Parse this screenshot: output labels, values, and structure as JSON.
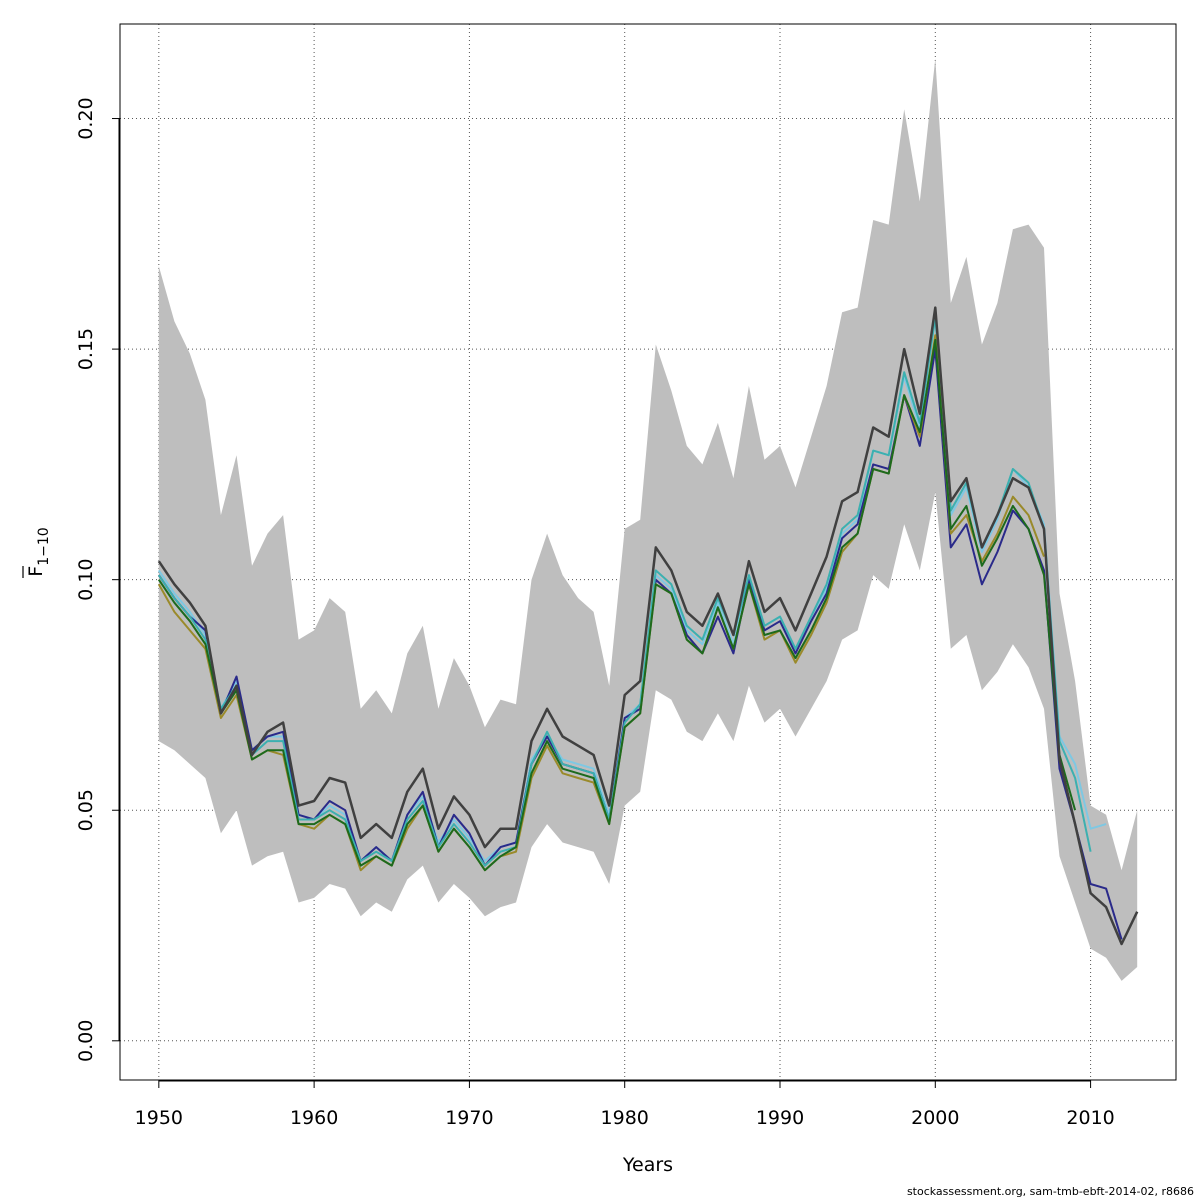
{
  "chart_data": {
    "type": "line",
    "title": "",
    "xlabel": "Years",
    "ylabel": {
      "main": "F",
      "sub": "1−10"
    },
    "xlim": [
      1947.5,
      2015.5
    ],
    "ylim": [
      -0.0085,
      0.2205
    ],
    "x_ticks": [
      1950,
      1960,
      1970,
      1980,
      1990,
      2000,
      2010
    ],
    "y_ticks": [
      0.0,
      0.05,
      0.1,
      0.15,
      0.2
    ],
    "y_tick_labels": [
      "0.00",
      "0.05",
      "0.10",
      "0.15",
      "0.20"
    ],
    "grid": true,
    "legend": "none",
    "x": [
      1950,
      1951,
      1952,
      1953,
      1954,
      1955,
      1956,
      1957,
      1958,
      1959,
      1960,
      1961,
      1962,
      1963,
      1964,
      1965,
      1966,
      1967,
      1968,
      1969,
      1970,
      1971,
      1972,
      1973,
      1974,
      1975,
      1976,
      1977,
      1978,
      1979,
      1980,
      1981,
      1982,
      1983,
      1984,
      1985,
      1986,
      1987,
      1988,
      1989,
      1990,
      1991,
      1992,
      1993,
      1994,
      1995,
      1996,
      1997,
      1998,
      1999,
      2000,
      2001,
      2002,
      2003,
      2004,
      2005,
      2006,
      2007,
      2008,
      2009,
      2010,
      2011,
      2012,
      2013
    ],
    "band_color": "#bebebe",
    "band": {
      "upper": [
        0.168,
        0.156,
        0.149,
        0.139,
        0.114,
        0.127,
        0.103,
        0.11,
        0.114,
        0.087,
        0.089,
        0.096,
        0.093,
        0.072,
        0.076,
        0.071,
        0.084,
        0.09,
        0.072,
        0.083,
        0.077,
        0.068,
        0.074,
        0.073,
        0.1,
        0.11,
        0.101,
        0.096,
        0.093,
        0.077,
        0.111,
        0.113,
        0.151,
        0.141,
        0.129,
        0.125,
        0.134,
        0.122,
        0.142,
        0.126,
        0.129,
        0.12,
        0.131,
        0.142,
        0.158,
        0.159,
        0.178,
        0.177,
        0.202,
        0.182,
        0.213,
        0.16,
        0.17,
        0.151,
        0.16,
        0.176,
        0.177,
        0.172,
        0.097,
        0.078,
        0.051,
        0.049,
        0.037,
        0.05
      ],
      "lower": [
        0.065,
        0.063,
        0.06,
        0.057,
        0.045,
        0.05,
        0.038,
        0.04,
        0.041,
        0.03,
        0.031,
        0.034,
        0.033,
        0.027,
        0.03,
        0.028,
        0.035,
        0.038,
        0.03,
        0.034,
        0.031,
        0.027,
        0.029,
        0.03,
        0.042,
        0.047,
        0.043,
        0.042,
        0.041,
        0.034,
        0.051,
        0.054,
        0.076,
        0.074,
        0.067,
        0.065,
        0.071,
        0.065,
        0.077,
        0.069,
        0.072,
        0.066,
        0.072,
        0.078,
        0.087,
        0.089,
        0.101,
        0.098,
        0.112,
        0.102,
        0.119,
        0.085,
        0.088,
        0.076,
        0.08,
        0.086,
        0.081,
        0.072,
        0.04,
        0.03,
        0.02,
        0.018,
        0.013,
        0.016
      ]
    },
    "series": [
      {
        "color": "#7ec8e3",
        "width": 2,
        "values": [
          0.102,
          0.097,
          0.093,
          0.088,
          0.072,
          0.078,
          0.063,
          0.066,
          0.066,
          0.049,
          0.048,
          0.051,
          0.049,
          0.039,
          0.042,
          0.039,
          0.049,
          0.053,
          0.043,
          0.048,
          0.044,
          0.039,
          0.042,
          0.043,
          0.061,
          0.066,
          0.061,
          0.06,
          0.059,
          0.049,
          0.07,
          0.073,
          0.101,
          0.098,
          0.089,
          0.086,
          0.095,
          0.086,
          0.101,
          0.09,
          0.092,
          0.085,
          0.092,
          0.098,
          0.11,
          0.113,
          0.128,
          0.127,
          0.144,
          0.133,
          0.157,
          0.114,
          0.12,
          0.106,
          0.113,
          0.124,
          0.12,
          0.112,
          0.066,
          0.06,
          0.046,
          0.047,
          null,
          null
        ]
      },
      {
        "color": "#2a2a8a",
        "width": 2,
        "values": [
          0.101,
          0.096,
          0.092,
          0.089,
          0.071,
          0.079,
          0.063,
          0.066,
          0.067,
          0.049,
          0.048,
          0.052,
          0.05,
          0.039,
          0.042,
          0.039,
          0.049,
          0.054,
          0.042,
          0.049,
          0.045,
          0.038,
          0.042,
          0.043,
          0.06,
          0.066,
          0.06,
          0.059,
          0.058,
          0.048,
          0.07,
          0.072,
          0.1,
          0.097,
          0.088,
          0.084,
          0.092,
          0.084,
          0.1,
          0.089,
          0.091,
          0.084,
          0.091,
          0.097,
          0.109,
          0.112,
          0.125,
          0.124,
          0.14,
          0.129,
          0.15,
          0.107,
          0.112,
          0.099,
          0.106,
          0.115,
          0.111,
          0.102,
          0.059,
          0.047,
          0.034,
          0.033,
          0.022,
          null
        ]
      },
      {
        "color": "#3cb0b0",
        "width": 2,
        "values": [
          0.101,
          0.096,
          0.092,
          0.087,
          0.072,
          0.077,
          0.062,
          0.065,
          0.065,
          0.048,
          0.048,
          0.05,
          0.048,
          0.039,
          0.041,
          0.039,
          0.048,
          0.052,
          0.042,
          0.047,
          0.043,
          0.038,
          0.041,
          0.042,
          0.06,
          0.067,
          0.06,
          0.059,
          0.058,
          0.048,
          0.069,
          0.073,
          0.102,
          0.099,
          0.09,
          0.087,
          0.096,
          0.088,
          0.101,
          0.09,
          0.092,
          0.085,
          0.092,
          0.099,
          0.111,
          0.114,
          0.128,
          0.127,
          0.145,
          0.134,
          0.157,
          0.115,
          0.121,
          0.107,
          0.114,
          0.124,
          0.121,
          0.111,
          0.065,
          0.057,
          0.041,
          null,
          null,
          null
        ]
      },
      {
        "color": "#9a8a2a",
        "width": 2,
        "values": [
          0.099,
          0.093,
          0.089,
          0.085,
          0.07,
          0.075,
          0.061,
          0.063,
          0.062,
          0.047,
          0.046,
          0.049,
          0.047,
          0.037,
          0.04,
          0.038,
          0.046,
          0.051,
          0.041,
          0.046,
          0.042,
          0.037,
          0.04,
          0.041,
          0.057,
          0.064,
          0.058,
          0.057,
          0.056,
          0.047,
          0.068,
          0.071,
          0.099,
          0.097,
          0.087,
          0.084,
          0.094,
          0.085,
          0.099,
          0.087,
          0.089,
          0.082,
          0.088,
          0.095,
          0.106,
          0.11,
          0.124,
          0.123,
          0.14,
          0.131,
          0.153,
          0.11,
          0.114,
          0.104,
          0.11,
          0.118,
          0.114,
          0.105,
          null,
          null,
          null,
          null,
          null,
          null
        ]
      },
      {
        "color": "#1d6a1d",
        "width": 2,
        "values": [
          0.1,
          0.095,
          0.091,
          0.086,
          0.071,
          0.076,
          0.061,
          0.063,
          0.063,
          0.047,
          0.047,
          0.049,
          0.047,
          0.038,
          0.04,
          0.038,
          0.047,
          0.051,
          0.041,
          0.046,
          0.042,
          0.037,
          0.04,
          0.042,
          0.058,
          0.065,
          0.059,
          0.058,
          0.057,
          0.047,
          0.068,
          0.071,
          0.099,
          0.097,
          0.087,
          0.084,
          0.094,
          0.085,
          0.099,
          0.088,
          0.089,
          0.083,
          0.089,
          0.096,
          0.107,
          0.11,
          0.124,
          0.123,
          0.14,
          0.132,
          0.152,
          0.111,
          0.116,
          0.103,
          0.109,
          0.116,
          0.111,
          0.101,
          0.062,
          0.05,
          null,
          null,
          null,
          null
        ]
      },
      {
        "color": "#404040",
        "width": 2.5,
        "values": [
          0.104,
          0.099,
          0.095,
          0.09,
          0.071,
          0.077,
          0.062,
          0.067,
          0.069,
          0.051,
          0.052,
          0.057,
          0.056,
          0.044,
          0.047,
          0.044,
          0.054,
          0.059,
          0.046,
          0.053,
          0.049,
          0.042,
          0.046,
          0.046,
          0.065,
          0.072,
          0.066,
          0.064,
          0.062,
          0.051,
          0.075,
          0.078,
          0.107,
          0.102,
          0.093,
          0.09,
          0.097,
          0.088,
          0.104,
          0.093,
          0.096,
          0.089,
          0.097,
          0.105,
          0.117,
          0.119,
          0.133,
          0.131,
          0.15,
          0.136,
          0.159,
          0.117,
          0.122,
          0.107,
          0.114,
          0.122,
          0.12,
          0.111,
          0.061,
          0.047,
          0.032,
          0.029,
          0.021,
          0.028
        ]
      }
    ]
  },
  "caption": "stockassessment.org, sam-tmb-ebft-2014-02, r8686"
}
